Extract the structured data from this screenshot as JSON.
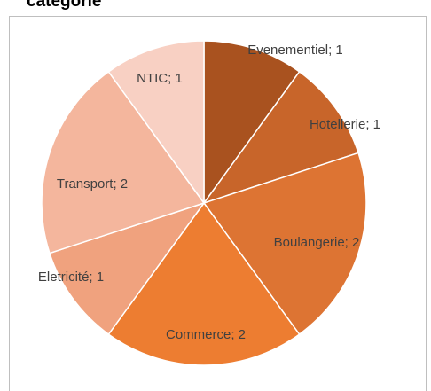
{
  "chart_data": {
    "type": "pie",
    "title": "catégorie",
    "categories": [
      "Evenementiel",
      "Hotellerie",
      "Boulangerie",
      "Commerce",
      "Eletricité",
      "Transport",
      "NTIC"
    ],
    "values": [
      1,
      1,
      2,
      2,
      1,
      2,
      1
    ],
    "value_labels": [
      "Evenementiel; 1",
      "Hotellerie; 1",
      "Boulangerie; 2",
      "Commerce; 2",
      "Eletricité; 1",
      "Transport; 2",
      "NTIC; 1"
    ],
    "colors": [
      "#a9521f",
      "#c8652a",
      "#dd7433",
      "#ed7d31",
      "#f0a27e",
      "#f4b69d",
      "#f8d0c3"
    ]
  }
}
